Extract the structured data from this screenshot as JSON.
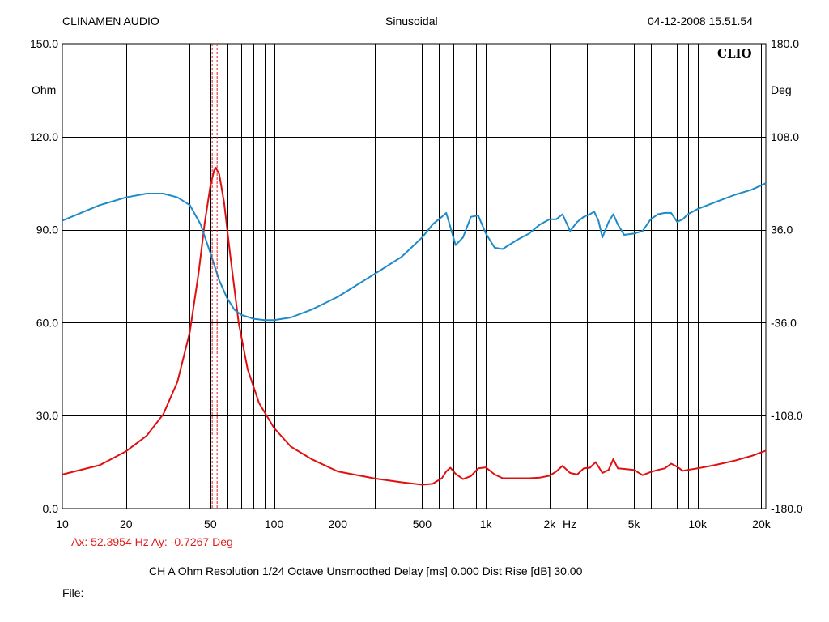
{
  "header": {
    "left": "CLINAMEN AUDIO",
    "center": "Sinusoidal",
    "right": "04-12-2008 15.51.54"
  },
  "logo": "CLIO",
  "cursor": {
    "text": "Ax: 52.3954 Hz   Ay: -0.7267 Deg",
    "x_hz": 52.3954,
    "y_deg": -0.7267
  },
  "footer": {
    "info": "CH A   Ohm   Resolution 1/24 Octave   Unsmoothed   Delay [ms] 0.000    Dist Rise [dB] 30.00",
    "file": "File:"
  },
  "colors": {
    "impedance": "#e01010",
    "phase": "#1e8ac8",
    "grid": "#000000",
    "cursor": "#e02020"
  },
  "chart_data": {
    "type": "line",
    "x_scale": "log",
    "xlim": [
      10,
      21000
    ],
    "ylim_left": [
      0,
      150
    ],
    "ylim_right": [
      -180,
      180
    ],
    "ylabel_left": "Ohm",
    "ylabel_right": "Deg",
    "x_unit_label": "Hz",
    "x_tick_labels": [
      {
        "v": 10,
        "t": "10"
      },
      {
        "v": 20,
        "t": "20"
      },
      {
        "v": 50,
        "t": "50"
      },
      {
        "v": 100,
        "t": "100"
      },
      {
        "v": 200,
        "t": "200"
      },
      {
        "v": 500,
        "t": "500"
      },
      {
        "v": 1000,
        "t": "1k"
      },
      {
        "v": 2000,
        "t": "2k"
      },
      {
        "v": 5000,
        "t": "5k"
      },
      {
        "v": 10000,
        "t": "10k"
      },
      {
        "v": 20000,
        "t": "20k"
      }
    ],
    "y_left_ticks": [
      "0.0",
      "30.0",
      "60.0",
      "90.0",
      "120.0",
      "150.0"
    ],
    "y_right_ticks": [
      "-180.0",
      "-108.0",
      "-36.0",
      "36.0",
      "108.0",
      "180.0"
    ],
    "series": [
      {
        "key": "impedance",
        "axis": "left",
        "x": [
          10,
          15,
          20,
          25,
          30,
          35,
          40,
          44,
          47,
          50,
          52,
          53,
          55,
          58,
          62,
          68,
          75,
          85,
          100,
          120,
          150,
          200,
          300,
          400,
          500,
          560,
          620,
          650,
          680,
          720,
          780,
          850,
          920,
          1000,
          1100,
          1200,
          1400,
          1600,
          1800,
          2000,
          2150,
          2300,
          2500,
          2700,
          2900,
          3100,
          3300,
          3550,
          3800,
          4000,
          4200,
          4500,
          5000,
          5500,
          6000,
          6500,
          7000,
          7500,
          8000,
          8500,
          9000,
          10000,
          12000,
          15000,
          18000,
          21000
        ],
        "y": [
          11,
          14,
          18.5,
          23.5,
          30.5,
          41,
          57,
          76,
          92,
          104,
          109,
          110,
          108,
          99,
          82,
          60,
          45,
          34,
          26,
          20,
          16,
          12,
          9.7,
          8.5,
          7.7,
          8,
          9.8,
          12,
          13.2,
          11.2,
          9.5,
          10.5,
          13,
          13.3,
          11,
          9.8,
          9.8,
          9.8,
          10,
          10.6,
          12,
          13.8,
          11.5,
          11,
          13,
          13.2,
          15,
          11.5,
          12.5,
          16,
          13,
          12.8,
          12.5,
          10.8,
          11.8,
          12.5,
          13,
          14.5,
          13.5,
          12.2,
          12.5,
          13,
          14,
          15.5,
          17,
          18.7
        ]
      },
      {
        "key": "phase",
        "axis": "right",
        "x": [
          10,
          15,
          20,
          25,
          30,
          35,
          40,
          45,
          50,
          55,
          60,
          65,
          70,
          80,
          90,
          100,
          120,
          150,
          200,
          300,
          400,
          500,
          560,
          620,
          650,
          680,
          720,
          780,
          850,
          920,
          1000,
          1100,
          1200,
          1400,
          1600,
          1800,
          2000,
          2150,
          2300,
          2500,
          2700,
          2900,
          3100,
          3250,
          3400,
          3550,
          3800,
          4000,
          4200,
          4500,
          5000,
          5500,
          6000,
          6500,
          7000,
          7500,
          8000,
          8500,
          9000,
          10000,
          12000,
          15000,
          18000,
          21000
        ],
        "y": [
          43,
          55,
          61,
          64,
          64,
          61,
          55,
          40,
          18,
          -3,
          -17,
          -26,
          -30,
          -33,
          -34,
          -34,
          -32,
          -26,
          -16,
          2,
          15,
          30,
          40,
          46,
          49,
          38,
          24,
          30,
          46,
          47,
          33,
          22,
          21,
          28,
          33,
          40,
          44,
          44,
          48,
          35,
          42,
          46,
          48,
          50,
          43,
          30,
          42,
          48,
          40,
          32,
          33,
          35,
          44,
          48,
          49,
          49,
          42,
          44,
          48,
          52,
          57,
          63,
          67,
          72
        ]
      }
    ]
  }
}
